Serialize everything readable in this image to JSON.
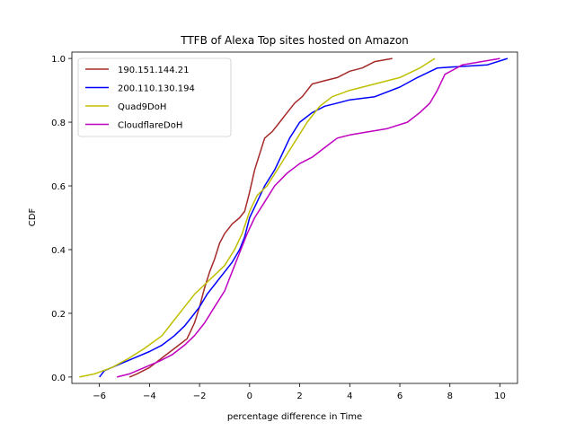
{
  "chart_data": {
    "type": "line",
    "title": "TTFB of Alexa Top sites hosted on Amazon",
    "xlabel": "percentage difference in Time",
    "ylabel": "CDF",
    "xlim": [
      -7.1,
      10.7
    ],
    "ylim": [
      -0.02,
      1.02
    ],
    "xticks": [
      -6,
      -4,
      -2,
      0,
      2,
      4,
      6,
      8,
      10
    ],
    "yticks": [
      0.0,
      0.2,
      0.4,
      0.6,
      0.8,
      1.0
    ],
    "xtick_labels": [
      "−6",
      "−4",
      "−2",
      "0",
      "2",
      "4",
      "6",
      "8",
      "10"
    ],
    "ytick_labels": [
      "0.0",
      "0.2",
      "0.4",
      "0.6",
      "0.8",
      "1.0"
    ],
    "legend_position": "top-left",
    "grid": false,
    "series": [
      {
        "name": "190.151.144.21",
        "color": "#a52a2a",
        "points": [
          [
            -4.8,
            0.0
          ],
          [
            -4.5,
            0.01
          ],
          [
            -4.0,
            0.03
          ],
          [
            -3.5,
            0.06
          ],
          [
            -3.0,
            0.09
          ],
          [
            -2.5,
            0.12
          ],
          [
            -2.2,
            0.17
          ],
          [
            -2.0,
            0.22
          ],
          [
            -1.8,
            0.28
          ],
          [
            -1.6,
            0.33
          ],
          [
            -1.4,
            0.37
          ],
          [
            -1.2,
            0.42
          ],
          [
            -1.0,
            0.45
          ],
          [
            -0.7,
            0.48
          ],
          [
            -0.4,
            0.5
          ],
          [
            -0.2,
            0.52
          ],
          [
            0.0,
            0.58
          ],
          [
            0.2,
            0.65
          ],
          [
            0.4,
            0.7
          ],
          [
            0.6,
            0.75
          ],
          [
            0.9,
            0.77
          ],
          [
            1.2,
            0.8
          ],
          [
            1.5,
            0.83
          ],
          [
            1.8,
            0.86
          ],
          [
            2.1,
            0.88
          ],
          [
            2.5,
            0.92
          ],
          [
            3.0,
            0.93
          ],
          [
            3.5,
            0.94
          ],
          [
            4.0,
            0.96
          ],
          [
            4.5,
            0.97
          ],
          [
            5.0,
            0.99
          ],
          [
            5.7,
            1.0
          ]
        ]
      },
      {
        "name": "200.110.130.194",
        "color": "#0000ff",
        "points": [
          [
            -6.0,
            0.0
          ],
          [
            -5.8,
            0.02
          ],
          [
            -5.2,
            0.04
          ],
          [
            -4.6,
            0.06
          ],
          [
            -4.0,
            0.08
          ],
          [
            -3.5,
            0.1
          ],
          [
            -3.0,
            0.13
          ],
          [
            -2.6,
            0.16
          ],
          [
            -2.3,
            0.19
          ],
          [
            -2.0,
            0.22
          ],
          [
            -1.7,
            0.26
          ],
          [
            -1.3,
            0.3
          ],
          [
            -1.0,
            0.33
          ],
          [
            -0.7,
            0.36
          ],
          [
            -0.4,
            0.4
          ],
          [
            -0.2,
            0.44
          ],
          [
            0.0,
            0.5
          ],
          [
            0.3,
            0.55
          ],
          [
            0.6,
            0.6
          ],
          [
            1.0,
            0.65
          ],
          [
            1.3,
            0.7
          ],
          [
            1.6,
            0.75
          ],
          [
            2.0,
            0.8
          ],
          [
            2.5,
            0.83
          ],
          [
            3.0,
            0.85
          ],
          [
            3.5,
            0.86
          ],
          [
            4.0,
            0.87
          ],
          [
            5.0,
            0.88
          ],
          [
            6.0,
            0.91
          ],
          [
            6.7,
            0.94
          ],
          [
            7.5,
            0.97
          ],
          [
            9.5,
            0.98
          ],
          [
            10.3,
            1.0
          ]
        ]
      },
      {
        "name": "Quad9DoH",
        "color": "#bfbf00",
        "points": [
          [
            -6.8,
            0.0
          ],
          [
            -6.2,
            0.01
          ],
          [
            -5.5,
            0.03
          ],
          [
            -4.8,
            0.06
          ],
          [
            -4.2,
            0.09
          ],
          [
            -3.5,
            0.13
          ],
          [
            -3.0,
            0.18
          ],
          [
            -2.6,
            0.22
          ],
          [
            -2.2,
            0.26
          ],
          [
            -1.8,
            0.29
          ],
          [
            -1.4,
            0.32
          ],
          [
            -1.0,
            0.35
          ],
          [
            -0.6,
            0.4
          ],
          [
            -0.3,
            0.45
          ],
          [
            0.0,
            0.52
          ],
          [
            0.3,
            0.57
          ],
          [
            0.7,
            0.6
          ],
          [
            1.1,
            0.65
          ],
          [
            1.5,
            0.7
          ],
          [
            1.9,
            0.75
          ],
          [
            2.3,
            0.8
          ],
          [
            2.8,
            0.85
          ],
          [
            3.3,
            0.88
          ],
          [
            4.0,
            0.9
          ],
          [
            5.0,
            0.92
          ],
          [
            6.0,
            0.94
          ],
          [
            6.8,
            0.97
          ],
          [
            7.4,
            1.0
          ]
        ]
      },
      {
        "name": "CloudflareDoH",
        "color": "#bf00bf",
        "points": [
          [
            -5.3,
            0.0
          ],
          [
            -4.8,
            0.01
          ],
          [
            -4.2,
            0.03
          ],
          [
            -3.6,
            0.05
          ],
          [
            -3.1,
            0.07
          ],
          [
            -2.6,
            0.1
          ],
          [
            -2.2,
            0.13
          ],
          [
            -1.8,
            0.17
          ],
          [
            -1.4,
            0.22
          ],
          [
            -1.0,
            0.27
          ],
          [
            -0.7,
            0.33
          ],
          [
            -0.4,
            0.39
          ],
          [
            -0.1,
            0.45
          ],
          [
            0.2,
            0.5
          ],
          [
            0.6,
            0.55
          ],
          [
            1.0,
            0.6
          ],
          [
            1.5,
            0.64
          ],
          [
            2.0,
            0.67
          ],
          [
            2.5,
            0.69
          ],
          [
            3.0,
            0.72
          ],
          [
            3.5,
            0.75
          ],
          [
            4.0,
            0.76
          ],
          [
            5.5,
            0.78
          ],
          [
            6.3,
            0.8
          ],
          [
            6.8,
            0.83
          ],
          [
            7.2,
            0.86
          ],
          [
            7.5,
            0.9
          ],
          [
            7.8,
            0.95
          ],
          [
            8.5,
            0.98
          ],
          [
            10.0,
            1.0
          ]
        ]
      }
    ]
  }
}
